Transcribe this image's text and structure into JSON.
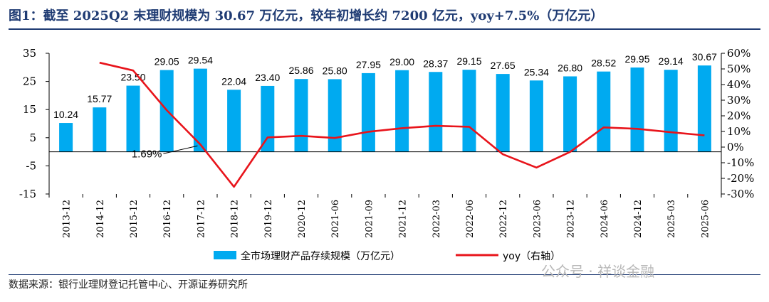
{
  "figure": {
    "title": "图1：截至 2025Q2 末理财规模为 30.67 万亿元，较年初增长约 7200 亿元，yoy+7.5%（万亿元）",
    "source": "数据来源：银行业理财登记托管中心、开源证券研究所",
    "watermark": "公众号 · 祥谈金融"
  },
  "colors": {
    "bar": "#00aaf0",
    "line": "#e8141b",
    "title": "#1f3b73",
    "axis": "#000000"
  },
  "chart_data": {
    "type": "bar",
    "categories": [
      "2013-12",
      "2014-12",
      "2015-12",
      "2016-12",
      "2017-12",
      "2018-12",
      "2019-12",
      "2020-12",
      "2021-06",
      "2021-09",
      "2021-12",
      "2022-03",
      "2022-06",
      "2022-12",
      "2023-06",
      "2023-12",
      "2024-06",
      "2024-12",
      "2025-03",
      "2025-06"
    ],
    "series": [
      {
        "name": "全市场理财产品存续规模（万亿元）",
        "type": "bar",
        "axis": "left",
        "values": [
          10.24,
          15.77,
          23.5,
          29.05,
          29.54,
          22.04,
          23.4,
          25.86,
          25.8,
          27.95,
          29.0,
          28.37,
          29.15,
          27.65,
          25.34,
          26.8,
          28.52,
          29.95,
          29.14,
          30.67
        ],
        "labels": [
          "10.24",
          "15.77",
          "23.50",
          "29.05",
          "29.54",
          "22.04",
          "23.40",
          "25.86",
          "25.80",
          "27.95",
          "29.00",
          "28.37",
          "29.15",
          "27.65",
          "25.34",
          "26.80",
          "28.52",
          "29.95",
          "29.14",
          "30.67"
        ]
      },
      {
        "name": "yoy（右轴）",
        "type": "line",
        "axis": "right",
        "values": [
          null,
          54,
          49,
          23.6,
          1.69,
          -25.4,
          6.2,
          7.2,
          5.8,
          9.8,
          12.1,
          13.6,
          13.0,
          -4.6,
          -13.1,
          -3.1,
          12.6,
          11.7,
          9.5,
          7.5
        ]
      }
    ],
    "annotations": [
      {
        "text": "1.69%",
        "category": "2017-12",
        "series": "yoy（右轴）"
      }
    ],
    "y_left": {
      "ticks": [
        35,
        25,
        15,
        5,
        -5,
        -15
      ],
      "lim": [
        -15,
        35
      ]
    },
    "y_right": {
      "ticks": [
        "60%",
        "50%",
        "40%",
        "30%",
        "20%",
        "10%",
        "0%",
        "-10%",
        "-20%",
        "-30%"
      ],
      "lim": [
        -30,
        60
      ]
    },
    "legend": {
      "position": "bottom"
    },
    "grid": false
  }
}
